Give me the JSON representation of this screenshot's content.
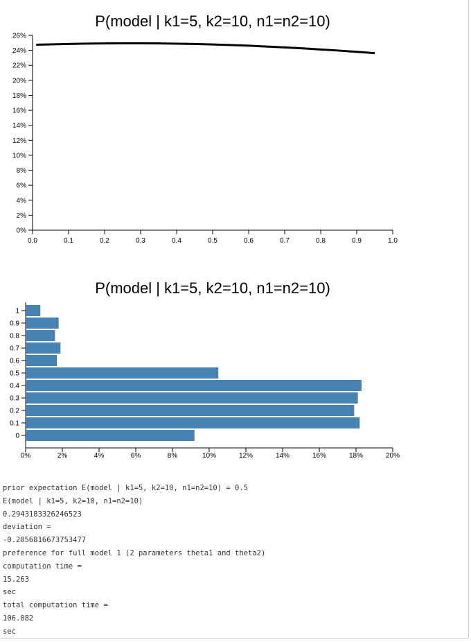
{
  "chart_data": [
    {
      "type": "line",
      "title": "P(model | k1=5, k2=10, n1=n2=10)",
      "xlim": [
        0,
        1
      ],
      "ylim": [
        0,
        26
      ],
      "x_ticks": [
        "0.0",
        "0.1",
        "0.2",
        "0.3",
        "0.4",
        "0.5",
        "0.6",
        "0.7",
        "0.8",
        "0.9",
        "1.0"
      ],
      "y_ticks": [
        "0%",
        "2%",
        "4%",
        "6%",
        "8%",
        "10%",
        "12%",
        "14%",
        "16%",
        "18%",
        "20%",
        "22%",
        "24%",
        "26%"
      ],
      "series": [
        {
          "x": [
            0.01,
            0.05,
            0.1,
            0.15,
            0.2,
            0.25,
            0.3,
            0.35,
            0.4,
            0.45,
            0.5,
            0.55,
            0.6,
            0.65,
            0.7,
            0.75,
            0.8,
            0.85,
            0.9,
            0.95
          ],
          "values": [
            24.75,
            24.8,
            24.86,
            24.9,
            24.93,
            24.94,
            24.94,
            24.92,
            24.89,
            24.85,
            24.79,
            24.71,
            24.62,
            24.51,
            24.39,
            24.26,
            24.12,
            23.97,
            23.8,
            23.63
          ]
        }
      ],
      "grid": false,
      "color": "#000000"
    },
    {
      "type": "bar",
      "orientation": "horizontal",
      "title": "P(model | k1=5, k2=10, n1=n2=10)",
      "categories": [
        "0",
        "0.1",
        "0.2",
        "0.3",
        "0.4",
        "0.5",
        "0.6",
        "0.7",
        "0.8",
        "0.9",
        "1"
      ],
      "values": [
        9.2,
        18.2,
        17.9,
        18.1,
        18.3,
        10.5,
        1.7,
        1.9,
        1.6,
        1.8,
        0.8
      ],
      "xlim": [
        0,
        20
      ],
      "x_ticks": [
        "0%",
        "2%",
        "4%",
        "6%",
        "8%",
        "10%",
        "12%",
        "14%",
        "16%",
        "18%",
        "20%"
      ],
      "grid": false,
      "color": "#4682b4"
    }
  ],
  "output_lines": [
    "prior expectation E(model | k1=5, k2=10, n1=n2=10) = 0.5",
    "E(model | k1=5, k2=10, n1=n2=10)",
    "0.2943183326246523",
    "deviation =",
    "-0.2056816673753477",
    "preference for full model 1 (2 parameters theta1 and theta2)",
    "computation time =",
    "15.263",
    "sec",
    "total computation time =",
    "106.082",
    "sec"
  ]
}
